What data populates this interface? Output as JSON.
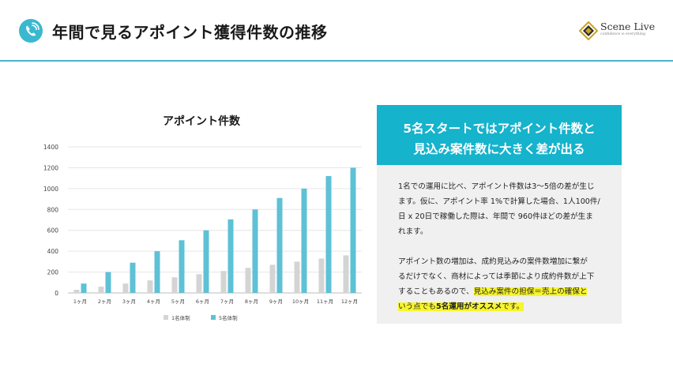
{
  "header": {
    "title": "年間で見るアポイント獲得件数の推移",
    "icon": "phone-icon",
    "logo": {
      "name": "Scene Live",
      "tagline": "confidence is everything"
    }
  },
  "colors": {
    "accent": "#15b3cc",
    "series_1": "#d4d4d4",
    "series_5": "#5ec1d6",
    "highlight": "#f7f52c",
    "panel_bg": "#f0f0f0"
  },
  "chart_data": {
    "type": "bar",
    "title": "アポイント件数",
    "categories": [
      "1ヶ月",
      "2ヶ月",
      "3ヶ月",
      "4ヶ月",
      "5ヶ月",
      "6ヶ月",
      "7ヶ月",
      "8ヶ月",
      "9ヶ月",
      "10ヶ月",
      "11ヶ月",
      "12ヶ月"
    ],
    "series": [
      {
        "name": "1名体制",
        "color": "#d4d4d4",
        "values": [
          30,
          60,
          90,
          120,
          150,
          180,
          210,
          240,
          270,
          300,
          330,
          360
        ]
      },
      {
        "name": "5名体制",
        "color": "#5ec1d6",
        "values": [
          90,
          200,
          290,
          400,
          505,
          600,
          705,
          800,
          910,
          1000,
          1120,
          1200
        ]
      }
    ],
    "ylim": [
      0,
      1400
    ],
    "yticks": [
      0,
      200,
      400,
      600,
      800,
      1000,
      1200,
      1400
    ],
    "ytick_labels": [
      "0",
      "200",
      "400",
      "600",
      "800",
      "1000",
      "1200",
      "1400"
    ],
    "grid": true,
    "legend": "bottom"
  },
  "panel": {
    "heading_line1": "5名スタートではアポイント件数と",
    "heading_line2": "見込み案件数に大きく差が出る",
    "paragraph1": [
      "1名での運用に比べ、アポイント件数は3～5倍の差が生じ",
      "ます。仮に、アポイント率 1%で計算した場合、1人100件/",
      "日 x 20日で稼働した際は、年間で 960件ほどの差が生ま",
      "れます。"
    ],
    "paragraph2": [
      "アポイント数の増加は、成約見込みの案件数増加に繋が",
      "るだけでなく、商材によっては季節により成約件数が上下",
      "することもあるので、",
      "見込み案件の担保＝売上の確保と",
      "いう点でも",
      "5名運用がオススメ",
      "です。"
    ]
  }
}
